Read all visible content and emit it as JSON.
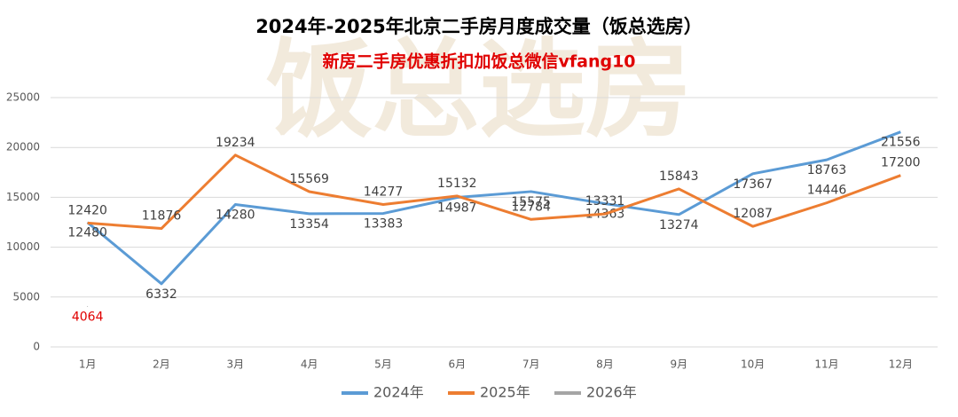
{
  "chart_data": {
    "type": "line",
    "title": "2024年-2025年北京二手房月度成交量（饭总选房）",
    "subtitle": "新房二手房优惠折扣加饭总微信vfang10",
    "watermark": "饭总选房",
    "categories": [
      "1月",
      "2月",
      "3月",
      "4月",
      "5月",
      "6月",
      "7月",
      "8月",
      "9月",
      "10月",
      "11月",
      "12月"
    ],
    "series": [
      {
        "name": "2024年",
        "color": "#5b9bd5",
        "values": [
          12480,
          6332,
          14280,
          13354,
          13383,
          14987,
          15575,
          14363,
          13274,
          17367,
          18763,
          21556
        ]
      },
      {
        "name": "2025年",
        "color": "#ed7d31",
        "values": [
          12420,
          11876,
          19234,
          15569,
          14277,
          15132,
          12784,
          13331,
          15843,
          12087,
          14446,
          17200
        ]
      },
      {
        "name": "2026年",
        "color": "#a5a5a5",
        "label_color": "#e00000",
        "values": [
          4064,
          null,
          null,
          null,
          null,
          null,
          null,
          null,
          null,
          null,
          null,
          null
        ]
      }
    ],
    "ylim": [
      0,
      25000
    ],
    "yticks": [
      0,
      5000,
      10000,
      15000,
      20000,
      25000
    ],
    "grid": true,
    "legend": "bottom"
  }
}
